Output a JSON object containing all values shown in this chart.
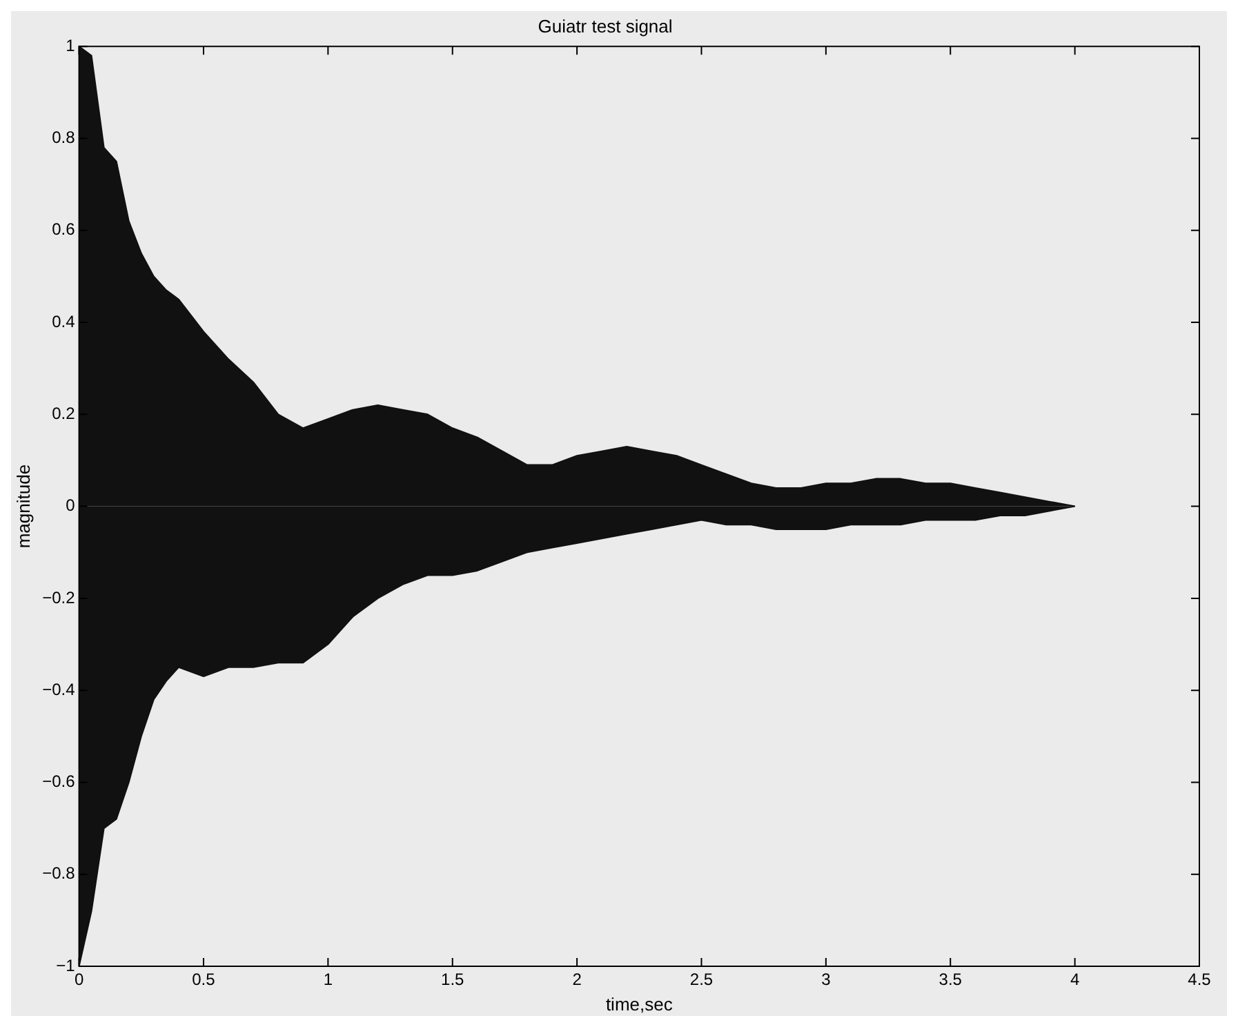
{
  "chart_data": {
    "type": "area",
    "title": "Guiatr test signal",
    "xlabel": "time,sec",
    "ylabel": "magnitude",
    "x": [
      0,
      0.05,
      0.1,
      0.15,
      0.2,
      0.25,
      0.3,
      0.35,
      0.4,
      0.5,
      0.6,
      0.7,
      0.8,
      0.9,
      1.0,
      1.1,
      1.2,
      1.3,
      1.4,
      1.5,
      1.6,
      1.7,
      1.8,
      1.9,
      2.0,
      2.1,
      2.2,
      2.3,
      2.4,
      2.5,
      2.6,
      2.7,
      2.8,
      2.9,
      3.0,
      3.1,
      3.2,
      3.3,
      3.4,
      3.5,
      3.6,
      3.7,
      3.8,
      3.9,
      4.0
    ],
    "series": [
      {
        "color": "#111111",
        "values": [
          1.0,
          0.98,
          0.78,
          0.75,
          0.62,
          0.55,
          0.5,
          0.47,
          0.45,
          0.38,
          0.32,
          0.27,
          0.2,
          0.17,
          0.19,
          0.21,
          0.22,
          0.21,
          0.2,
          0.17,
          0.15,
          0.12,
          0.09,
          0.09,
          0.11,
          0.12,
          0.13,
          0.12,
          0.11,
          0.09,
          0.07,
          0.05,
          0.04,
          0.04,
          0.05,
          0.05,
          0.06,
          0.06,
          0.05,
          0.05,
          0.04,
          0.03,
          0.02,
          0.01,
          0
        ]
      },
      {
        "color": "#111111",
        "values": [
          -1.0,
          -0.88,
          -0.7,
          -0.68,
          -0.6,
          -0.5,
          -0.42,
          -0.38,
          -0.35,
          -0.37,
          -0.35,
          -0.35,
          -0.34,
          -0.34,
          -0.3,
          -0.24,
          -0.2,
          -0.17,
          -0.15,
          -0.15,
          -0.14,
          -0.12,
          -0.1,
          -0.09,
          -0.08,
          -0.07,
          -0.06,
          -0.05,
          -0.04,
          -0.03,
          -0.04,
          -0.04,
          -0.05,
          -0.05,
          -0.05,
          -0.04,
          -0.04,
          -0.04,
          -0.03,
          -0.03,
          -0.03,
          -0.02,
          -0.02,
          -0.01,
          0
        ]
      }
    ],
    "xlim": [
      0,
      4.5
    ],
    "xticks": [
      0,
      0.5,
      1,
      1.5,
      2,
      2.5,
      3,
      3.5,
      4,
      4.5
    ],
    "ylim": [
      -1,
      1
    ],
    "yticks": [
      -1,
      -0.8,
      -0.6,
      -0.4,
      -0.2,
      0,
      0.2,
      0.4,
      0.6,
      0.8,
      1
    ],
    "grid": false,
    "legend": false
  }
}
